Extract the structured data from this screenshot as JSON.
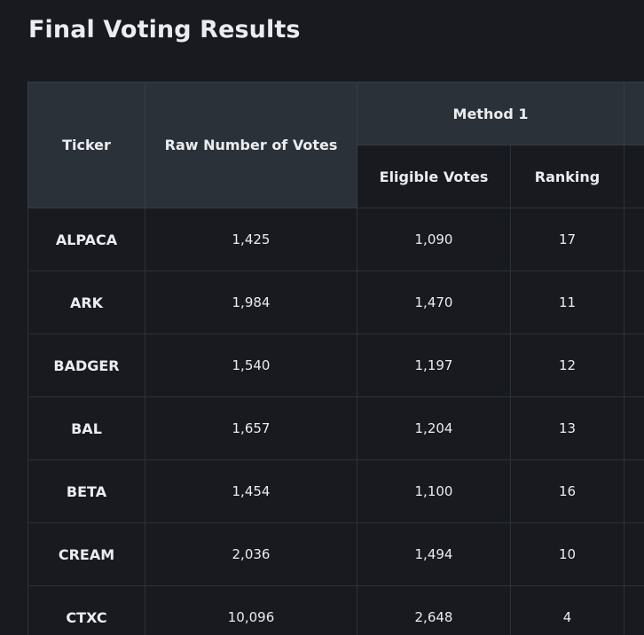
{
  "page": {
    "title": "Final Voting Results"
  },
  "table": {
    "headers": {
      "ticker": "Ticker",
      "raw_votes": "Raw Number of Votes",
      "method1": "Method 1",
      "eligible_votes": "Eligible Votes",
      "ranking": "Ranking"
    },
    "rows": [
      {
        "ticker": "ALPACA",
        "raw": "1,425",
        "eligible": "1,090",
        "ranking": "17"
      },
      {
        "ticker": "ARK",
        "raw": "1,984",
        "eligible": "1,470",
        "ranking": "11"
      },
      {
        "ticker": "BADGER",
        "raw": "1,540",
        "eligible": "1,197",
        "ranking": "12"
      },
      {
        "ticker": "BAL",
        "raw": "1,657",
        "eligible": "1,204",
        "ranking": "13"
      },
      {
        "ticker": "BETA",
        "raw": "1,454",
        "eligible": "1,100",
        "ranking": "16"
      },
      {
        "ticker": "CREAM",
        "raw": "2,036",
        "eligible": "1,494",
        "ranking": "10"
      },
      {
        "ticker": "CTXC",
        "raw": "10,096",
        "eligible": "2,648",
        "ranking": "4"
      }
    ]
  }
}
